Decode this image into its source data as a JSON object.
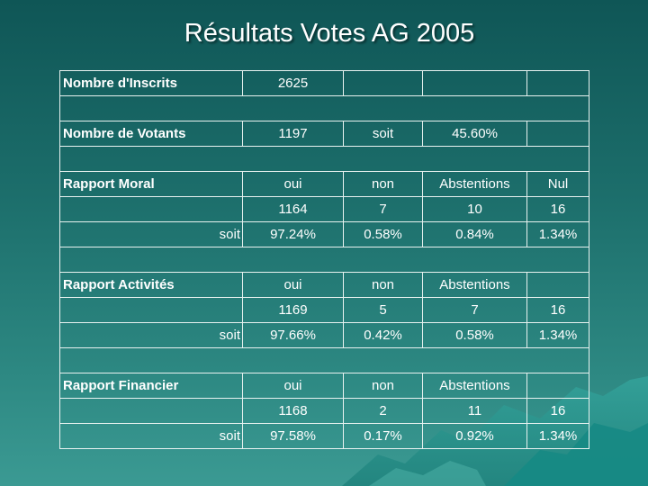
{
  "title": "Résultats Votes AG 2005",
  "rows": [
    {
      "type": "data",
      "cells": [
        "Nombre d'Inscrits",
        "2625",
        "",
        "",
        ""
      ]
    },
    {
      "type": "spacer"
    },
    {
      "type": "data",
      "cells": [
        "Nombre de Votants",
        "1197",
        "soit",
        "45.60%",
        ""
      ]
    },
    {
      "type": "spacer"
    },
    {
      "type": "data",
      "cells": [
        "Rapport Moral",
        "oui",
        "non",
        "Abstentions",
        "Nul"
      ]
    },
    {
      "type": "data",
      "cells": [
        "",
        "1164",
        "7",
        "10",
        "16"
      ]
    },
    {
      "type": "soit",
      "cells": [
        "soit",
        "97.24%",
        "0.58%",
        "0.84%",
        "1.34%"
      ]
    },
    {
      "type": "spacer"
    },
    {
      "type": "data",
      "cells": [
        "Rapport Activités",
        "oui",
        "non",
        "Abstentions",
        ""
      ]
    },
    {
      "type": "data",
      "cells": [
        "",
        "1169",
        "5",
        "7",
        "16"
      ]
    },
    {
      "type": "soit",
      "cells": [
        "soit",
        "97.66%",
        "0.42%",
        "0.58%",
        "1.34%"
      ]
    },
    {
      "type": "spacer"
    },
    {
      "type": "data",
      "cells": [
        "Rapport Financier",
        "oui",
        "non",
        "Abstentions",
        ""
      ]
    },
    {
      "type": "data",
      "cells": [
        "",
        "1168",
        "2",
        "11",
        "16"
      ]
    },
    {
      "type": "soit",
      "cells": [
        "soit",
        "97.58%",
        "0.17%",
        "0.92%",
        "1.34%"
      ]
    }
  ]
}
